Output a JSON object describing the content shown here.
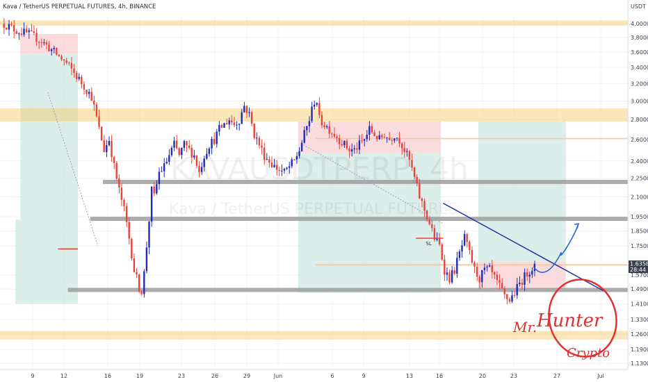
{
  "chart_data": {
    "type": "candlestick",
    "title": "Kava / TetherUS PERPETUAL FUTURES, 4h, BINANCE",
    "watermark_symbol": "KAVAUSDTPERP, 4h",
    "watermark_name": "Kava / TetherUS PERPETUAL FUTURES",
    "currency_label": "USDT",
    "y_scale": "log",
    "ylim": [
      1.11,
      4.15
    ],
    "y_ticks": [
      "4.0000",
      "3.8000",
      "3.6000",
      "3.4000",
      "3.2000",
      "3.0000",
      "2.8000",
      "2.6000",
      "2.4000",
      "2.2500",
      "2.1000",
      "1.9500",
      "1.8500",
      "1.7500",
      "1.6358",
      "1.5700",
      "1.4900",
      "1.4100",
      "1.3300",
      "1.2600",
      "1.1900",
      "1.1300"
    ],
    "x_ticks": [
      "9",
      "12",
      "16",
      "19",
      "23",
      "26",
      "29",
      "Jun",
      "6",
      "9",
      "13",
      "16",
      "20",
      "23",
      "27",
      "Jul"
    ],
    "last_price": "1.6358",
    "countdown": "28:44",
    "price_path": [
      [
        0,
        4.0
      ],
      [
        5,
        3.9
      ],
      [
        10,
        3.85
      ],
      [
        15,
        3.75
      ],
      [
        20,
        3.6
      ],
      [
        25,
        3.45
      ],
      [
        30,
        3.25
      ],
      [
        35,
        3.05
      ],
      [
        38,
        2.7
      ],
      [
        40,
        2.5
      ],
      [
        42,
        2.6
      ],
      [
        44,
        2.35
      ],
      [
        46,
        2.15
      ],
      [
        48,
        2.0
      ],
      [
        50,
        1.8
      ],
      [
        52,
        1.6
      ],
      [
        54,
        1.5
      ],
      [
        55,
        1.48
      ],
      [
        56,
        1.58
      ],
      [
        57,
        1.75
      ],
      [
        58,
        1.93
      ],
      [
        59,
        2.15
      ],
      [
        60,
        2.1
      ],
      [
        61,
        2.2
      ],
      [
        62,
        2.3
      ],
      [
        64,
        2.35
      ],
      [
        66,
        2.45
      ],
      [
        68,
        2.55
      ],
      [
        70,
        2.45
      ],
      [
        72,
        2.55
      ],
      [
        74,
        2.5
      ],
      [
        76,
        2.45
      ],
      [
        78,
        2.3
      ],
      [
        80,
        2.45
      ],
      [
        82,
        2.55
      ],
      [
        84,
        2.6
      ],
      [
        86,
        2.7
      ],
      [
        88,
        2.75
      ],
      [
        90,
        2.8
      ],
      [
        92,
        2.75
      ],
      [
        94,
        2.8
      ],
      [
        96,
        2.95
      ],
      [
        98,
        2.85
      ],
      [
        100,
        2.65
      ],
      [
        102,
        2.55
      ],
      [
        104,
        2.45
      ],
      [
        106,
        2.4
      ],
      [
        108,
        2.35
      ],
      [
        110,
        2.32
      ],
      [
        112,
        2.3
      ],
      [
        114,
        2.35
      ],
      [
        116,
        2.4
      ],
      [
        118,
        2.5
      ],
      [
        120,
        2.65
      ],
      [
        122,
        2.8
      ],
      [
        124,
        3.0
      ],
      [
        125,
        3.0
      ],
      [
        126,
        2.8
      ],
      [
        128,
        2.75
      ],
      [
        130,
        2.7
      ],
      [
        132,
        2.65
      ],
      [
        134,
        2.6
      ],
      [
        136,
        2.55
      ],
      [
        138,
        2.5
      ],
      [
        140,
        2.5
      ],
      [
        142,
        2.55
      ],
      [
        144,
        2.6
      ],
      [
        146,
        2.7
      ],
      [
        148,
        2.65
      ],
      [
        150,
        2.6
      ],
      [
        152,
        2.65
      ],
      [
        154,
        2.6
      ],
      [
        156,
        2.65
      ],
      [
        158,
        2.6
      ],
      [
        160,
        2.5
      ],
      [
        162,
        2.4
      ],
      [
        164,
        2.25
      ],
      [
        166,
        2.1
      ],
      [
        168,
        2.0
      ],
      [
        170,
        1.9
      ],
      [
        172,
        1.8
      ],
      [
        174,
        1.75
      ],
      [
        176,
        1.6
      ],
      [
        178,
        1.55
      ],
      [
        180,
        1.6
      ],
      [
        182,
        1.7
      ],
      [
        184,
        1.8
      ],
      [
        186,
        1.7
      ],
      [
        188,
        1.6
      ],
      [
        190,
        1.55
      ],
      [
        192,
        1.6
      ],
      [
        194,
        1.6
      ],
      [
        196,
        1.55
      ],
      [
        198,
        1.5
      ],
      [
        200,
        1.45
      ],
      [
        202,
        1.43
      ],
      [
        204,
        1.47
      ],
      [
        206,
        1.52
      ],
      [
        208,
        1.56
      ],
      [
        210,
        1.6
      ],
      [
        212,
        1.62
      ]
    ],
    "projection_path": [
      [
        212,
        1.62
      ],
      [
        218,
        1.66
      ],
      [
        224,
        1.72
      ],
      [
        230,
        1.9
      ]
    ],
    "horizontal_levels": [
      {
        "type": "zone",
        "color": "#f5c24f",
        "low": 3.97,
        "high": 4.05
      },
      {
        "type": "zone",
        "color": "#f5c24f",
        "low": 2.78,
        "high": 2.92
      },
      {
        "type": "line",
        "color": "#9e9e9e",
        "price": 2.22
      },
      {
        "type": "line",
        "color": "#9e9e9e",
        "price": 1.935
      },
      {
        "type": "line",
        "color": "#9e9e9e",
        "price": 1.485
      },
      {
        "type": "zone",
        "color": "#f5c24f",
        "low": 1.235,
        "high": 1.275
      }
    ],
    "trendline": {
      "from": [
        176,
        2.05
      ],
      "to": [
        240,
        1.48
      ]
    },
    "annotation_sl": "SL",
    "signature": {
      "first": "Mr.",
      "name": "Hunter",
      "second": "Crypto"
    }
  }
}
